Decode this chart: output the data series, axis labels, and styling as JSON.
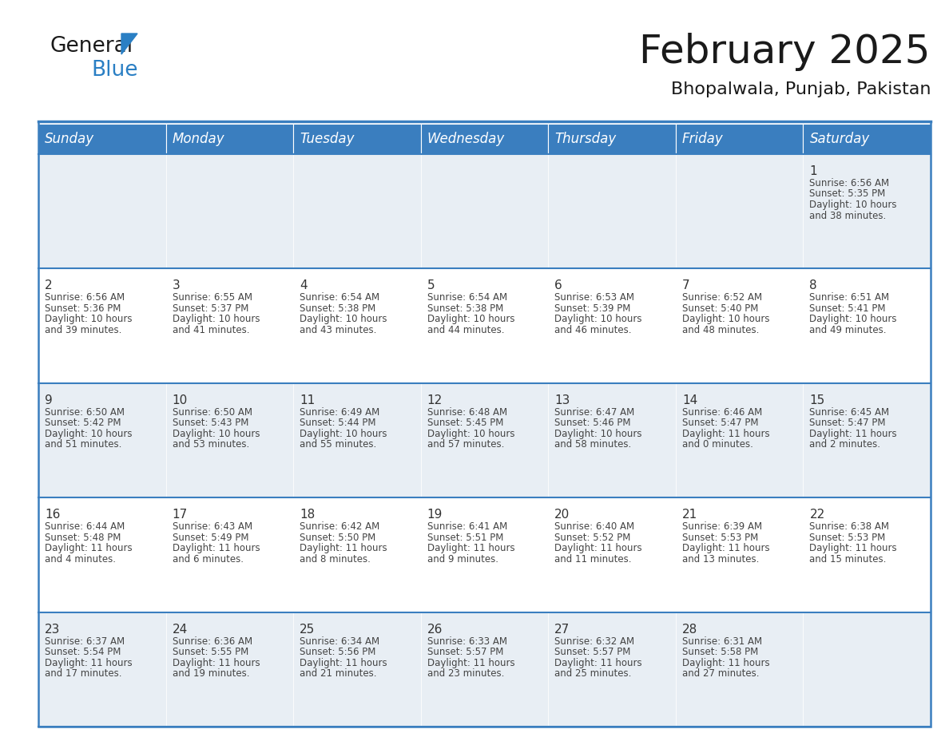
{
  "title": "February 2025",
  "subtitle": "Bhopalwala, Punjab, Pakistan",
  "header_color": "#3a7ebf",
  "header_text_color": "#ffffff",
  "days_of_week": [
    "Sunday",
    "Monday",
    "Tuesday",
    "Wednesday",
    "Thursday",
    "Friday",
    "Saturday"
  ],
  "bg_color": "#ffffff",
  "cell_bg_row0": "#e8eef4",
  "cell_bg_row1": "#ffffff",
  "text_color": "#333333",
  "day_number_color": "#333333",
  "logo_general_color": "#1a1a1a",
  "logo_blue_color": "#2a7fc4",
  "title_fontsize": 36,
  "subtitle_fontsize": 16,
  "header_fontsize": 12,
  "day_num_fontsize": 11,
  "cell_text_fontsize": 8.5,
  "calendar_data": [
    {
      "day": 1,
      "col": 6,
      "row": 0,
      "sunrise": "6:56 AM",
      "sunset": "5:35 PM",
      "daylight_h": "10 hours",
      "daylight_m": "38 minutes."
    },
    {
      "day": 2,
      "col": 0,
      "row": 1,
      "sunrise": "6:56 AM",
      "sunset": "5:36 PM",
      "daylight_h": "10 hours",
      "daylight_m": "39 minutes."
    },
    {
      "day": 3,
      "col": 1,
      "row": 1,
      "sunrise": "6:55 AM",
      "sunset": "5:37 PM",
      "daylight_h": "10 hours",
      "daylight_m": "41 minutes."
    },
    {
      "day": 4,
      "col": 2,
      "row": 1,
      "sunrise": "6:54 AM",
      "sunset": "5:38 PM",
      "daylight_h": "10 hours",
      "daylight_m": "43 minutes."
    },
    {
      "day": 5,
      "col": 3,
      "row": 1,
      "sunrise": "6:54 AM",
      "sunset": "5:38 PM",
      "daylight_h": "10 hours",
      "daylight_m": "44 minutes."
    },
    {
      "day": 6,
      "col": 4,
      "row": 1,
      "sunrise": "6:53 AM",
      "sunset": "5:39 PM",
      "daylight_h": "10 hours",
      "daylight_m": "46 minutes."
    },
    {
      "day": 7,
      "col": 5,
      "row": 1,
      "sunrise": "6:52 AM",
      "sunset": "5:40 PM",
      "daylight_h": "10 hours",
      "daylight_m": "48 minutes."
    },
    {
      "day": 8,
      "col": 6,
      "row": 1,
      "sunrise": "6:51 AM",
      "sunset": "5:41 PM",
      "daylight_h": "10 hours",
      "daylight_m": "49 minutes."
    },
    {
      "day": 9,
      "col": 0,
      "row": 2,
      "sunrise": "6:50 AM",
      "sunset": "5:42 PM",
      "daylight_h": "10 hours",
      "daylight_m": "51 minutes."
    },
    {
      "day": 10,
      "col": 1,
      "row": 2,
      "sunrise": "6:50 AM",
      "sunset": "5:43 PM",
      "daylight_h": "10 hours",
      "daylight_m": "53 minutes."
    },
    {
      "day": 11,
      "col": 2,
      "row": 2,
      "sunrise": "6:49 AM",
      "sunset": "5:44 PM",
      "daylight_h": "10 hours",
      "daylight_m": "55 minutes."
    },
    {
      "day": 12,
      "col": 3,
      "row": 2,
      "sunrise": "6:48 AM",
      "sunset": "5:45 PM",
      "daylight_h": "10 hours",
      "daylight_m": "57 minutes."
    },
    {
      "day": 13,
      "col": 4,
      "row": 2,
      "sunrise": "6:47 AM",
      "sunset": "5:46 PM",
      "daylight_h": "10 hours",
      "daylight_m": "58 minutes."
    },
    {
      "day": 14,
      "col": 5,
      "row": 2,
      "sunrise": "6:46 AM",
      "sunset": "5:47 PM",
      "daylight_h": "11 hours",
      "daylight_m": "0 minutes."
    },
    {
      "day": 15,
      "col": 6,
      "row": 2,
      "sunrise": "6:45 AM",
      "sunset": "5:47 PM",
      "daylight_h": "11 hours",
      "daylight_m": "2 minutes."
    },
    {
      "day": 16,
      "col": 0,
      "row": 3,
      "sunrise": "6:44 AM",
      "sunset": "5:48 PM",
      "daylight_h": "11 hours",
      "daylight_m": "4 minutes."
    },
    {
      "day": 17,
      "col": 1,
      "row": 3,
      "sunrise": "6:43 AM",
      "sunset": "5:49 PM",
      "daylight_h": "11 hours",
      "daylight_m": "6 minutes."
    },
    {
      "day": 18,
      "col": 2,
      "row": 3,
      "sunrise": "6:42 AM",
      "sunset": "5:50 PM",
      "daylight_h": "11 hours",
      "daylight_m": "8 minutes."
    },
    {
      "day": 19,
      "col": 3,
      "row": 3,
      "sunrise": "6:41 AM",
      "sunset": "5:51 PM",
      "daylight_h": "11 hours",
      "daylight_m": "9 minutes."
    },
    {
      "day": 20,
      "col": 4,
      "row": 3,
      "sunrise": "6:40 AM",
      "sunset": "5:52 PM",
      "daylight_h": "11 hours",
      "daylight_m": "11 minutes."
    },
    {
      "day": 21,
      "col": 5,
      "row": 3,
      "sunrise": "6:39 AM",
      "sunset": "5:53 PM",
      "daylight_h": "11 hours",
      "daylight_m": "13 minutes."
    },
    {
      "day": 22,
      "col": 6,
      "row": 3,
      "sunrise": "6:38 AM",
      "sunset": "5:53 PM",
      "daylight_h": "11 hours",
      "daylight_m": "15 minutes."
    },
    {
      "day": 23,
      "col": 0,
      "row": 4,
      "sunrise": "6:37 AM",
      "sunset": "5:54 PM",
      "daylight_h": "11 hours",
      "daylight_m": "17 minutes."
    },
    {
      "day": 24,
      "col": 1,
      "row": 4,
      "sunrise": "6:36 AM",
      "sunset": "5:55 PM",
      "daylight_h": "11 hours",
      "daylight_m": "19 minutes."
    },
    {
      "day": 25,
      "col": 2,
      "row": 4,
      "sunrise": "6:34 AM",
      "sunset": "5:56 PM",
      "daylight_h": "11 hours",
      "daylight_m": "21 minutes."
    },
    {
      "day": 26,
      "col": 3,
      "row": 4,
      "sunrise": "6:33 AM",
      "sunset": "5:57 PM",
      "daylight_h": "11 hours",
      "daylight_m": "23 minutes."
    },
    {
      "day": 27,
      "col": 4,
      "row": 4,
      "sunrise": "6:32 AM",
      "sunset": "5:57 PM",
      "daylight_h": "11 hours",
      "daylight_m": "25 minutes."
    },
    {
      "day": 28,
      "col": 5,
      "row": 4,
      "sunrise": "6:31 AM",
      "sunset": "5:58 PM",
      "daylight_h": "11 hours",
      "daylight_m": "27 minutes."
    }
  ]
}
